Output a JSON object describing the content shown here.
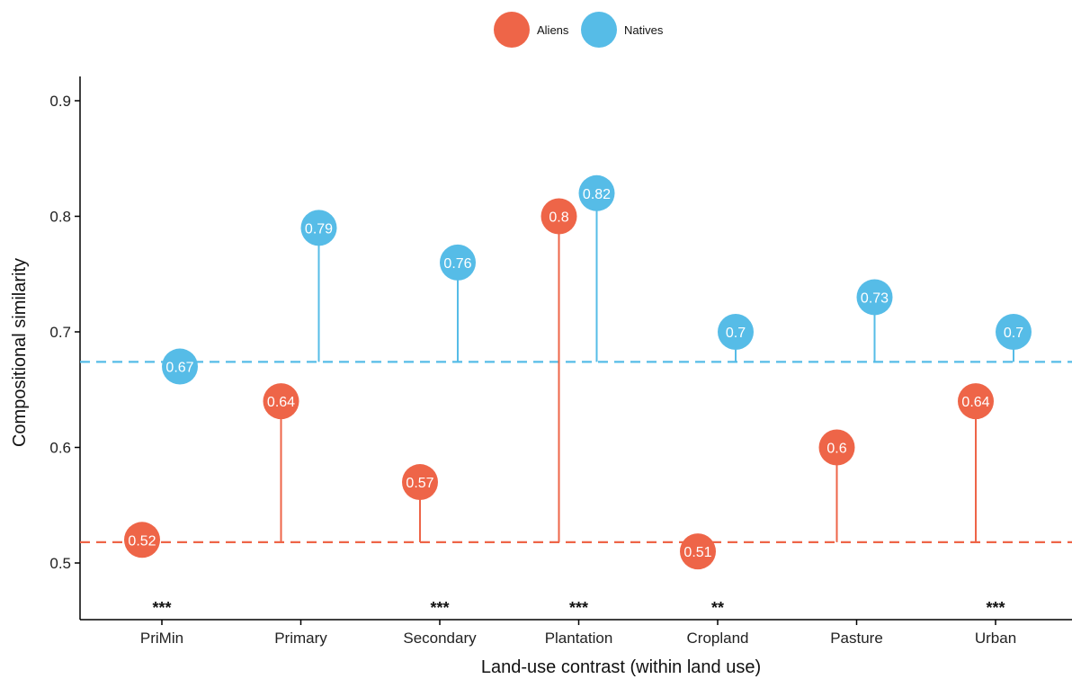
{
  "chart_data": {
    "type": "lollipop",
    "xlabel": "Land-use contrast (within land use)",
    "ylabel": "Compositional similarity",
    "ylim": [
      0.45,
      0.92
    ],
    "yticks": [
      0.5,
      0.6,
      0.7,
      0.8,
      0.9
    ],
    "ytick_labels": [
      "0.5",
      "0.6",
      "0.7",
      "0.8",
      "0.9"
    ],
    "categories": [
      "PriMin",
      "Primary",
      "Secondary",
      "Plantation",
      "Cropland",
      "Pasture",
      "Urban"
    ],
    "legend_position": "top",
    "series": [
      {
        "name": "Aliens",
        "color": "#EE6548",
        "baseline": 0.518,
        "values": [
          0.52,
          0.64,
          0.57,
          0.8,
          0.51,
          0.6,
          0.64
        ],
        "labels": [
          "0.52",
          "0.64",
          "0.57",
          "0.8",
          "0.51",
          "0.6",
          "0.64"
        ]
      },
      {
        "name": "Natives",
        "color": "#56BCE7",
        "baseline": 0.674,
        "values": [
          0.67,
          0.79,
          0.76,
          0.82,
          0.7,
          0.73,
          0.7
        ],
        "labels": [
          "0.67",
          "0.79",
          "0.76",
          "0.82",
          "0.7",
          "0.73",
          "0.7"
        ]
      }
    ],
    "significance": [
      "***",
      "",
      "***",
      "***",
      "**",
      "",
      "***"
    ]
  }
}
